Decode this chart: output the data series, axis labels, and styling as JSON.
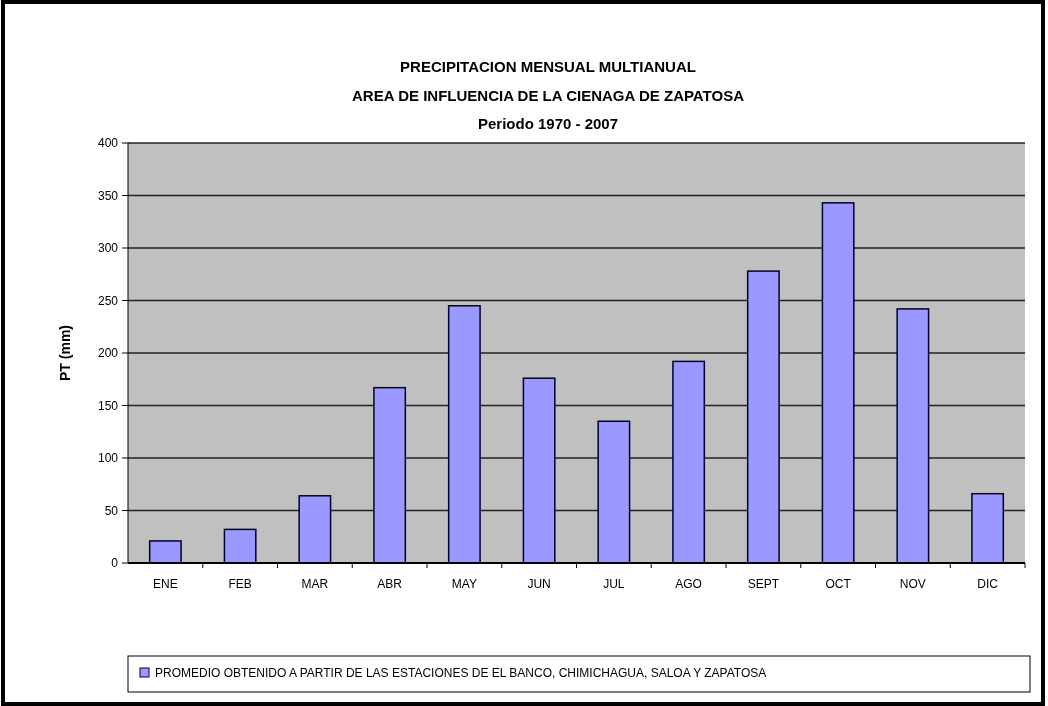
{
  "chart_data": {
    "type": "bar",
    "title": "PRECIPITACION MENSUAL MULTIANUAL",
    "subtitle": "AREA DE INFLUENCIA DE LA CIENAGA DE ZAPATOSA\nPeriodo  1970 - 2007",
    "ylabel": "PT (mm)",
    "categories": [
      "ENE",
      "FEB",
      "MAR",
      "ABR",
      "MAY",
      "JUN",
      "JUL",
      "AGO",
      "SEPT",
      "OCT",
      "NOV",
      "DIC"
    ],
    "series": [
      {
        "name": "PROMEDIO OBTENIDO A  PARTIR DE LAS ESTACIONES DE EL BANCO, CHIMICHAGUA, SALOA Y ZAPATOSA",
        "color": "#9999ff",
        "values": [
          21,
          32,
          64,
          167,
          245,
          176,
          135,
          192,
          278,
          343,
          242,
          66
        ]
      }
    ],
    "ylim": [
      0,
      400
    ],
    "yticks": [
      0,
      50,
      100,
      150,
      200,
      250,
      300,
      350,
      400
    ],
    "grid": "y",
    "legend": "bottom"
  }
}
